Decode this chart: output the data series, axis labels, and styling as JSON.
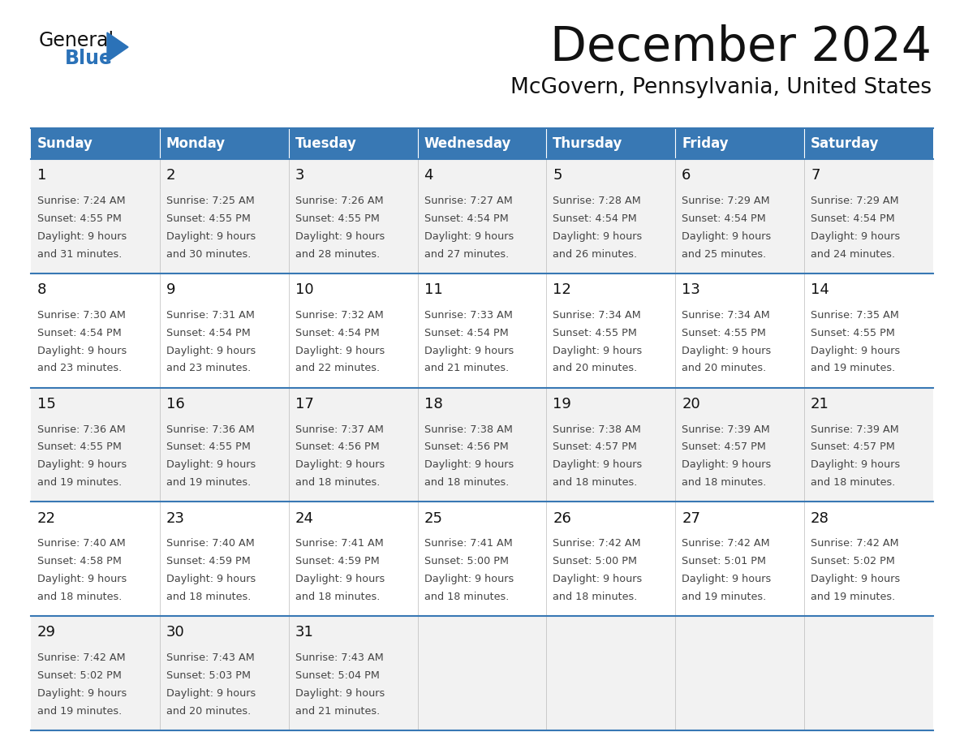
{
  "title": "December 2024",
  "subtitle": "McGovern, Pennsylvania, United States",
  "days_of_week": [
    "Sunday",
    "Monday",
    "Tuesday",
    "Wednesday",
    "Thursday",
    "Friday",
    "Saturday"
  ],
  "header_bg_color": "#3878b4",
  "header_text_color": "#ffffff",
  "row_bg_even": "#f2f2f2",
  "row_bg_odd": "#ffffff",
  "separator_color": "#3878b4",
  "cell_text_color": "#444444",
  "day_num_color": "#111111",
  "title_color": "#111111",
  "subtitle_color": "#111111",
  "logo_general_color": "#111111",
  "logo_blue_color": "#2b72b8",
  "weeks": [
    [
      {
        "day": 1,
        "sunrise": "7:24 AM",
        "sunset": "4:55 PM",
        "daylight_hours": 9,
        "daylight_minutes": 31
      },
      {
        "day": 2,
        "sunrise": "7:25 AM",
        "sunset": "4:55 PM",
        "daylight_hours": 9,
        "daylight_minutes": 30
      },
      {
        "day": 3,
        "sunrise": "7:26 AM",
        "sunset": "4:55 PM",
        "daylight_hours": 9,
        "daylight_minutes": 28
      },
      {
        "day": 4,
        "sunrise": "7:27 AM",
        "sunset": "4:54 PM",
        "daylight_hours": 9,
        "daylight_minutes": 27
      },
      {
        "day": 5,
        "sunrise": "7:28 AM",
        "sunset": "4:54 PM",
        "daylight_hours": 9,
        "daylight_minutes": 26
      },
      {
        "day": 6,
        "sunrise": "7:29 AM",
        "sunset": "4:54 PM",
        "daylight_hours": 9,
        "daylight_minutes": 25
      },
      {
        "day": 7,
        "sunrise": "7:29 AM",
        "sunset": "4:54 PM",
        "daylight_hours": 9,
        "daylight_minutes": 24
      }
    ],
    [
      {
        "day": 8,
        "sunrise": "7:30 AM",
        "sunset": "4:54 PM",
        "daylight_hours": 9,
        "daylight_minutes": 23
      },
      {
        "day": 9,
        "sunrise": "7:31 AM",
        "sunset": "4:54 PM",
        "daylight_hours": 9,
        "daylight_minutes": 23
      },
      {
        "day": 10,
        "sunrise": "7:32 AM",
        "sunset": "4:54 PM",
        "daylight_hours": 9,
        "daylight_minutes": 22
      },
      {
        "day": 11,
        "sunrise": "7:33 AM",
        "sunset": "4:54 PM",
        "daylight_hours": 9,
        "daylight_minutes": 21
      },
      {
        "day": 12,
        "sunrise": "7:34 AM",
        "sunset": "4:55 PM",
        "daylight_hours": 9,
        "daylight_minutes": 20
      },
      {
        "day": 13,
        "sunrise": "7:34 AM",
        "sunset": "4:55 PM",
        "daylight_hours": 9,
        "daylight_minutes": 20
      },
      {
        "day": 14,
        "sunrise": "7:35 AM",
        "sunset": "4:55 PM",
        "daylight_hours": 9,
        "daylight_minutes": 19
      }
    ],
    [
      {
        "day": 15,
        "sunrise": "7:36 AM",
        "sunset": "4:55 PM",
        "daylight_hours": 9,
        "daylight_minutes": 19
      },
      {
        "day": 16,
        "sunrise": "7:36 AM",
        "sunset": "4:55 PM",
        "daylight_hours": 9,
        "daylight_minutes": 19
      },
      {
        "day": 17,
        "sunrise": "7:37 AM",
        "sunset": "4:56 PM",
        "daylight_hours": 9,
        "daylight_minutes": 18
      },
      {
        "day": 18,
        "sunrise": "7:38 AM",
        "sunset": "4:56 PM",
        "daylight_hours": 9,
        "daylight_minutes": 18
      },
      {
        "day": 19,
        "sunrise": "7:38 AM",
        "sunset": "4:57 PM",
        "daylight_hours": 9,
        "daylight_minutes": 18
      },
      {
        "day": 20,
        "sunrise": "7:39 AM",
        "sunset": "4:57 PM",
        "daylight_hours": 9,
        "daylight_minutes": 18
      },
      {
        "day": 21,
        "sunrise": "7:39 AM",
        "sunset": "4:57 PM",
        "daylight_hours": 9,
        "daylight_minutes": 18
      }
    ],
    [
      {
        "day": 22,
        "sunrise": "7:40 AM",
        "sunset": "4:58 PM",
        "daylight_hours": 9,
        "daylight_minutes": 18
      },
      {
        "day": 23,
        "sunrise": "7:40 AM",
        "sunset": "4:59 PM",
        "daylight_hours": 9,
        "daylight_minutes": 18
      },
      {
        "day": 24,
        "sunrise": "7:41 AM",
        "sunset": "4:59 PM",
        "daylight_hours": 9,
        "daylight_minutes": 18
      },
      {
        "day": 25,
        "sunrise": "7:41 AM",
        "sunset": "5:00 PM",
        "daylight_hours": 9,
        "daylight_minutes": 18
      },
      {
        "day": 26,
        "sunrise": "7:42 AM",
        "sunset": "5:00 PM",
        "daylight_hours": 9,
        "daylight_minutes": 18
      },
      {
        "day": 27,
        "sunrise": "7:42 AM",
        "sunset": "5:01 PM",
        "daylight_hours": 9,
        "daylight_minutes": 19
      },
      {
        "day": 28,
        "sunrise": "7:42 AM",
        "sunset": "5:02 PM",
        "daylight_hours": 9,
        "daylight_minutes": 19
      }
    ],
    [
      {
        "day": 29,
        "sunrise": "7:42 AM",
        "sunset": "5:02 PM",
        "daylight_hours": 9,
        "daylight_minutes": 19
      },
      {
        "day": 30,
        "sunrise": "7:43 AM",
        "sunset": "5:03 PM",
        "daylight_hours": 9,
        "daylight_minutes": 20
      },
      {
        "day": 31,
        "sunrise": "7:43 AM",
        "sunset": "5:04 PM",
        "daylight_hours": 9,
        "daylight_minutes": 21
      },
      null,
      null,
      null,
      null
    ]
  ]
}
